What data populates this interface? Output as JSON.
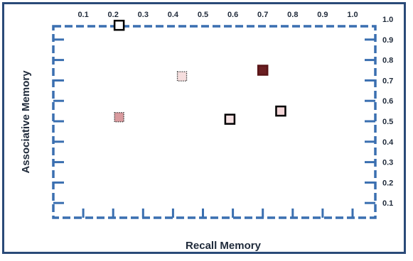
{
  "chart_data": {
    "type": "scatter",
    "xlabel": "Recall Memory",
    "ylabel": "Associative Memory",
    "xlim": [
      0,
      1.0
    ],
    "ylim": [
      0,
      1.0
    ],
    "x_ticks": [
      "0.1",
      "0.2",
      "0.3",
      "0.4",
      "0.5",
      "0.6",
      "0.7",
      "0.8",
      "0.9",
      "1.0"
    ],
    "y_ticks": [
      "0.1",
      "0.2",
      "0.3",
      "0.4",
      "0.5",
      "0.6",
      "0.7",
      "0.8",
      "0.9",
      "1.0"
    ],
    "grid": false,
    "points": [
      {
        "x": 0.22,
        "y": 0.97,
        "fill": "#ffffff",
        "stroke": "#000000",
        "border": "solid"
      },
      {
        "x": 0.43,
        "y": 0.72,
        "fill": "#f6dede",
        "stroke": "#333333",
        "border": "dotted"
      },
      {
        "x": 0.7,
        "y": 0.75,
        "fill": "#6b1f22",
        "stroke": "#5a1517",
        "border": "solid"
      },
      {
        "x": 0.22,
        "y": 0.52,
        "fill": "#d99a9e",
        "stroke": "#333333",
        "border": "dotted"
      },
      {
        "x": 0.59,
        "y": 0.51,
        "fill": "#f6e1e2",
        "stroke": "#000000",
        "border": "solid"
      },
      {
        "x": 0.76,
        "y": 0.55,
        "fill": "#f3d6d8",
        "stroke": "#000000",
        "border": "solid"
      }
    ],
    "colors": {
      "frame": "#2a4a78",
      "axis": "#3a6fb0"
    }
  }
}
